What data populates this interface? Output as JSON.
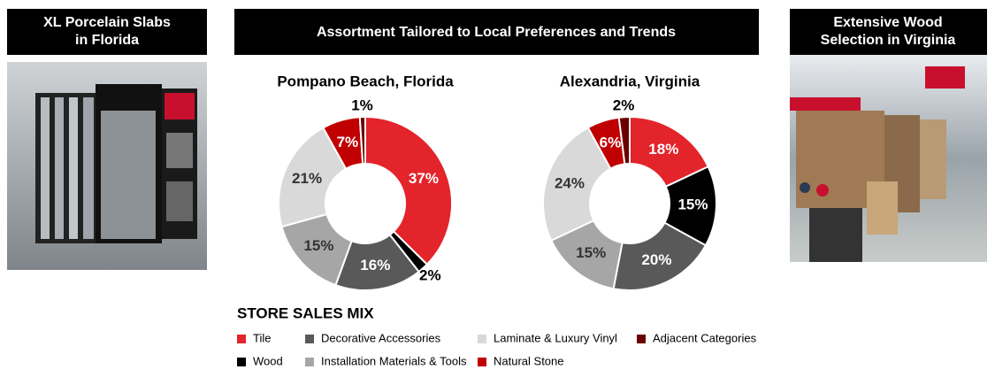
{
  "left_panel": {
    "title_lines": [
      "XL Porcelain Slabs",
      "in Florida"
    ]
  },
  "center_panel": {
    "title": "Assortment Tailored to Local Preferences and Trends",
    "legend_title": "STORE SALES MIX"
  },
  "right_panel": {
    "title_lines": [
      "Extensive Wood",
      "Selection in Virginia"
    ]
  },
  "chart_data": [
    {
      "type": "pie",
      "donut": true,
      "title": "Pompano Beach, Florida",
      "categories": [
        "Tile",
        "Wood",
        "Decorative Accessories",
        "Installation Materials & Tools",
        "Laminate & Luxury Vinyl",
        "Natural Stone",
        "Adjacent Categories"
      ],
      "values": [
        37,
        2,
        16,
        15,
        21,
        7,
        1
      ],
      "value_labels": [
        "37%",
        "2%",
        "16%",
        "15%",
        "21%",
        "7%",
        "1%"
      ],
      "colors": [
        "#e3242b",
        "#000000",
        "#595959",
        "#a6a6a6",
        "#d9d9d9",
        "#c00000",
        "#6b0000"
      ]
    },
    {
      "type": "pie",
      "donut": true,
      "title": "Alexandria, Virginia",
      "categories": [
        "Tile",
        "Wood",
        "Decorative Accessories",
        "Installation Materials & Tools",
        "Laminate & Luxury Vinyl",
        "Natural Stone",
        "Adjacent Categories"
      ],
      "values": [
        18,
        15,
        20,
        15,
        24,
        6,
        2
      ],
      "value_labels": [
        "18%",
        "15%",
        "20%",
        "15%",
        "24%",
        "6%",
        "2%"
      ],
      "colors": [
        "#e3242b",
        "#000000",
        "#595959",
        "#a6a6a6",
        "#d9d9d9",
        "#c00000",
        "#6b0000"
      ]
    }
  ]
}
